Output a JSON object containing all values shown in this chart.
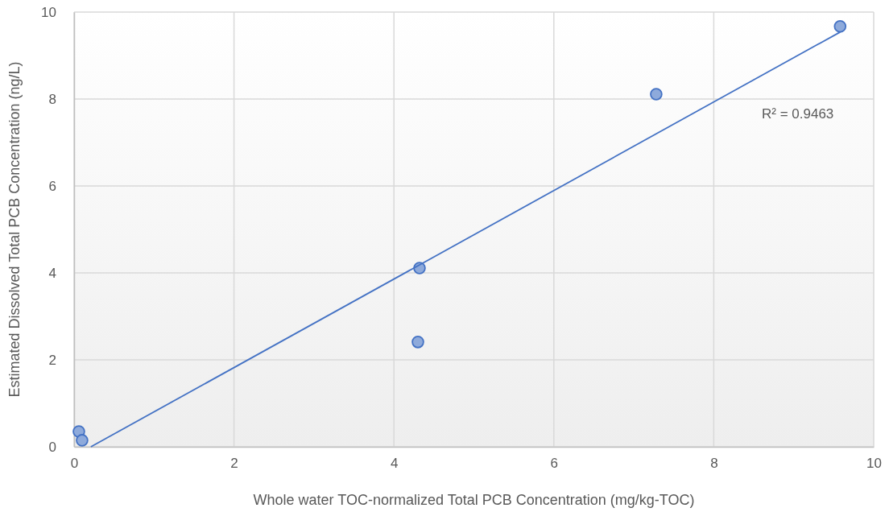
{
  "chart_data": {
    "type": "scatter",
    "xlabel": "Whole water TOC-normalized Total PCB Concentration (mg/kg-TOC)",
    "ylabel": "Estimated Dissolved Total PCB Concentration (ng/L)",
    "xlim": [
      0,
      10
    ],
    "ylim": [
      0,
      10
    ],
    "xticks": [
      0,
      2,
      4,
      6,
      8,
      10
    ],
    "yticks": [
      0,
      2,
      4,
      6,
      8,
      10
    ],
    "grid": true,
    "series": [
      {
        "color": "#8eaadb",
        "marker": "circle",
        "x": [
          0.06,
          0.1,
          4.32,
          4.3,
          7.28,
          9.58
        ],
        "values": [
          0.35,
          0.15,
          4.11,
          2.41,
          8.11,
          9.67
        ]
      },
      {
        "type": "line",
        "color": "#4472c4",
        "x": [
          0.21,
          9.58
        ],
        "values": [
          0,
          9.54
        ]
      }
    ],
    "annotations": [
      "R² = 0.9463"
    ]
  }
}
